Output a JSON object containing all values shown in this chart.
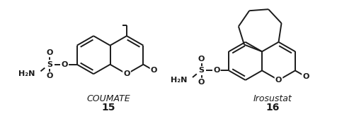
{
  "background_color": "#ffffff",
  "label1_name": "COUMATE",
  "label1_number": "15",
  "label2_name": "Irosustat",
  "label2_number": "16",
  "fig_width": 5.0,
  "fig_height": 1.65,
  "dpi": 100,
  "line_color": "#1a1a1a",
  "lw": 1.4
}
